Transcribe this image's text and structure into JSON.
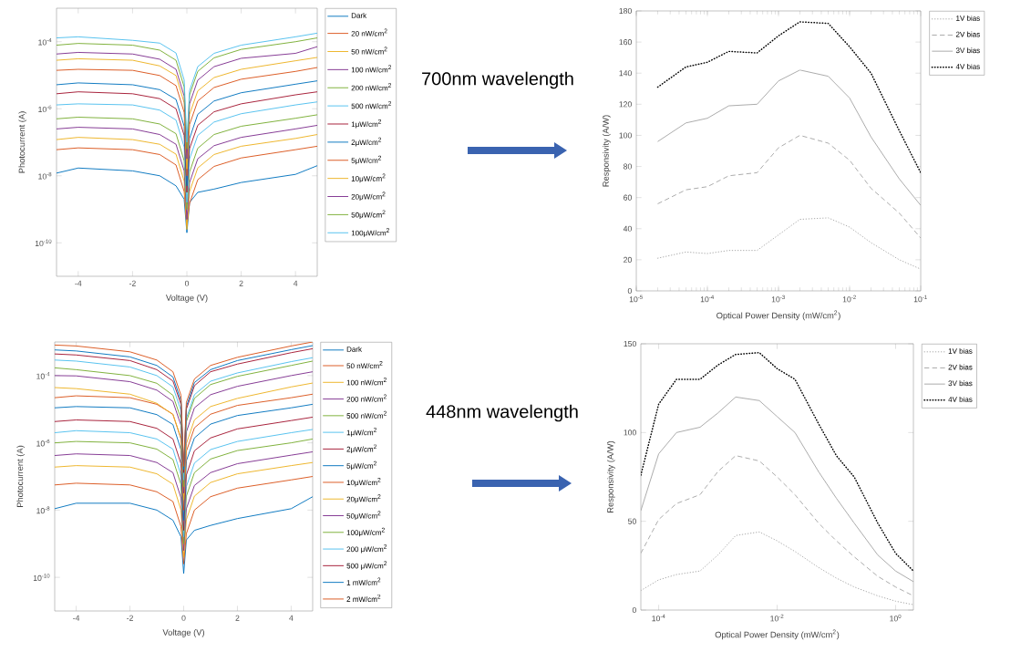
{
  "chart_data": [
    {
      "type": "line",
      "xlabel": "Voltage (V)",
      "ylabel": "Photocurrent (A)",
      "log": "y",
      "legend": "top right",
      "xlim": [
        -4.8,
        4.8
      ],
      "ylim": [
        1e-11,
        0.001
      ],
      "xticks": [
        -4,
        -2,
        0,
        2,
        4
      ],
      "yticks": [
        {
          "value": 1e-10,
          "label": "10$^{-10}$"
        },
        {
          "value": 1e-08,
          "label": "10$^{-8}$"
        },
        {
          "value": 1e-06,
          "label": "10$^{-6}$"
        },
        {
          "value": 0.0001,
          "label": "10$^{-4}$"
        }
      ],
      "x": [
        -4.8,
        -4,
        -2,
        -1,
        -0.4,
        -0.1,
        0,
        0.1,
        0.4,
        1,
        2,
        4,
        4.8
      ],
      "series": [
        {
          "name": "Dark",
          "color": "#0072bd",
          "values": [
            1.2e-08,
            1.7e-08,
            1.4e-08,
            1e-08,
            5e-09,
            2e-09,
            2e-10,
            1.6e-09,
            3.2e-09,
            4e-09,
            6.3e-09,
            1.1e-08,
            2e-08
          ]
        },
        {
          "name": "20 nW/cm$^{2}$",
          "color": "#d95319",
          "values": [
            6e-08,
            6.8e-08,
            6e-08,
            4.3e-08,
            2.1e-08,
            3.4e-09,
            3.2e-10,
            1.5e-09,
            7.6e-09,
            1.9e-08,
            3.4e-08,
            6e-08,
            7.6e-08
          ]
        },
        {
          "name": "50 nW/cm$^{2}$",
          "color": "#edb120",
          "values": [
            1.2e-07,
            1.4e-07,
            1.2e-07,
            8.7e-08,
            4.4e-08,
            6.9e-09,
            2.5e-10,
            3.4e-09,
            1.7e-08,
            4.3e-08,
            7.6e-08,
            1.3e-07,
            1.7e-07
          ]
        },
        {
          "name": "100 nW/cm$^{2}$",
          "color": "#7e2f8e",
          "values": [
            2.5e-07,
            2.8e-07,
            2.5e-07,
            1.7e-07,
            8.7e-08,
            1.4e-08,
            5e-10,
            6.3e-09,
            3.2e-08,
            7.9e-08,
            1.4e-07,
            2.5e-07,
            3.2e-07
          ]
        },
        {
          "name": "200 nW/cm$^{2}$",
          "color": "#77ac30",
          "values": [
            5e-07,
            5.6e-07,
            5e-07,
            3.5e-07,
            1.8e-07,
            2.8e-08,
            1e-09,
            1.3e-08,
            6.6e-08,
            1.7e-07,
            3e-07,
            5.2e-07,
            6.6e-07
          ]
        },
        {
          "name": "500 nW/cm$^{2}$",
          "color": "#4dbeee",
          "values": [
            1.3e-06,
            1.4e-06,
            1.3e-06,
            9.1e-07,
            4.6e-07,
            7.2e-08,
            1.6e-09,
            3.2e-08,
            1.6e-07,
            4e-07,
            7.1e-07,
            1.3e-06,
            1.6e-06
          ]
        },
        {
          "name": "1μW/cm$^{2}$",
          "color": "#a2142f",
          "values": [
            2.8e-06,
            3.2e-06,
            2.8e-06,
            2e-06,
            1e-06,
            1.6e-07,
            3.2e-09,
            6.5e-08,
            3.2e-07,
            8.1e-07,
            1.4e-06,
            2.6e-06,
            3.2e-06
          ]
        },
        {
          "name": "2μW/cm$^{2}$",
          "color": "#0072bd",
          "values": [
            5.2e-06,
            5.9e-06,
            5.2e-06,
            3.7e-06,
            1.9e-06,
            3e-07,
            5e-09,
            1.3e-07,
            6.8e-07,
            1.7e-06,
            3e-06,
            5.4e-06,
            6.8e-06
          ]
        },
        {
          "name": "5μW/cm$^{2}$",
          "color": "#d95319",
          "values": [
            1.4e-05,
            1.5e-05,
            1.4e-05,
            9.8e-06,
            4.9e-06,
            7.8e-07,
            1e-08,
            3.4e-07,
            1.7e-06,
            4.3e-06,
            7.6e-06,
            1.3e-05,
            1.7e-05
          ]
        },
        {
          "name": "10μW/cm$^{2}$",
          "color": "#edb120",
          "values": [
            2.8e-05,
            3.1e-05,
            2.8e-05,
            1.9e-05,
            9.8e-06,
            1.5e-06,
            1.6e-08,
            6.8e-07,
            3.4e-06,
            8.5e-06,
            1.5e-05,
            2.7e-05,
            3.4e-05
          ]
        },
        {
          "name": "20μW/cm$^{2}$",
          "color": "#7e2f8e",
          "values": [
            4.3e-05,
            4.8e-05,
            4.3e-05,
            3e-05,
            1.5e-05,
            2.4e-06,
            3.2e-08,
            1.4e-06,
            7.1e-06,
            1.8e-05,
            3.2e-05,
            4.5e-05,
            7.1e-05
          ]
        },
        {
          "name": "50μW/cm$^{2}$",
          "color": "#77ac30",
          "values": [
            7.9e-05,
            8.9e-05,
            7.9e-05,
            5.6e-05,
            2.8e-05,
            4.5e-06,
            6.3e-08,
            2.6e-06,
            1.3e-05,
            3.3e-05,
            5.9e-05,
            0.0001,
            0.00013
          ]
        },
        {
          "name": "100μW/cm$^{2}$",
          "color": "#4dbeee",
          "values": [
            0.00013,
            0.00014,
            0.00011,
            9.1e-05,
            4.6e-05,
            7.2e-06,
            1e-07,
            3.5e-06,
            1.8e-05,
            4.5e-05,
            7.9e-05,
            0.00014,
            0.00018
          ]
        }
      ]
    },
    {
      "type": "line",
      "xlabel": "Optical Power Density (mW/cm$^{2}$)",
      "ylabel": "Responsivity (A/W)",
      "log": "x",
      "legend": "top right",
      "annotations": [
        "700nm wavelength"
      ],
      "xlim": [
        1e-05,
        0.1
      ],
      "ylim": [
        0,
        180
      ],
      "xticks": [
        {
          "value": 1e-05,
          "label": "10$^{-5}$"
        },
        {
          "value": 0.0001,
          "label": "10$^{-4}$"
        },
        {
          "value": 0.001,
          "label": "10$^{-3}$"
        },
        {
          "value": 0.01,
          "label": "10$^{-2}$"
        },
        {
          "value": 0.1,
          "label": "10$^{-1}$"
        }
      ],
      "yticks": [
        0,
        20,
        40,
        60,
        80,
        100,
        120,
        140,
        160,
        180
      ],
      "x": [
        2e-05,
        5e-05,
        0.0001,
        0.0002,
        0.0005,
        0.001,
        0.002,
        0.005,
        0.01,
        0.02,
        0.05,
        0.1
      ],
      "series": [
        {
          "name": "1V bias",
          "color": "#a6a6a6",
          "line_style": "dotted",
          "values": [
            21,
            25,
            24,
            26,
            26,
            36,
            46,
            47,
            41,
            31,
            20,
            14
          ]
        },
        {
          "name": "2V bias",
          "color": "#a6a6a6",
          "line_style": "dashed",
          "values": [
            56,
            65,
            67,
            74,
            76,
            92,
            100,
            95,
            84,
            66,
            50,
            34
          ]
        },
        {
          "name": "3V bias",
          "color": "#a6a6a6",
          "line_style": "solid",
          "values": [
            96,
            108,
            111,
            119,
            120,
            135,
            142,
            138,
            124,
            99,
            72,
            55
          ]
        },
        {
          "name": "4V bias",
          "color": "#000000",
          "line_style": "dotted",
          "values": [
            131,
            144,
            147,
            154,
            153,
            164,
            173,
            172,
            157,
            140,
            103,
            76
          ]
        }
      ]
    },
    {
      "type": "line",
      "xlabel": "Voltage (V)",
      "ylabel": "Photocurrent (A)",
      "log": "y",
      "legend": "top right",
      "xlim": [
        -4.8,
        4.8
      ],
      "ylim": [
        1e-11,
        0.001
      ],
      "xticks": [
        -4,
        -2,
        0,
        2,
        4
      ],
      "yticks": [
        {
          "value": 1e-10,
          "label": "10$^{-10}$"
        },
        {
          "value": 1e-08,
          "label": "10$^{-8}$"
        },
        {
          "value": 1e-06,
          "label": "10$^{-6}$"
        },
        {
          "value": 0.0001,
          "label": "10$^{-4}$"
        }
      ],
      "x": [
        -4.8,
        -4,
        -2,
        -1,
        -0.4,
        -0.1,
        0,
        0.1,
        0.4,
        1,
        2,
        4,
        4.8
      ],
      "series": [
        {
          "name": "Dark",
          "color": "#0072bd",
          "values": [
            1.1e-08,
            1.6e-08,
            1.6e-08,
            1e-08,
            5e-09,
            1.6e-09,
            1.3e-10,
            1.3e-09,
            2.5e-09,
            3.5e-09,
            5.6e-09,
            1.1e-08,
            2.5e-08
          ]
        },
        {
          "name": "50 nW/cm$^{2}$",
          "color": "#d95319",
          "values": [
            5.6e-08,
            6.3e-08,
            5.6e-08,
            3.5e-08,
            1.8e-08,
            3.2e-09,
            2.5e-10,
            2e-09,
            1e-08,
            2.5e-08,
            4.5e-08,
            7.9e-08,
            1e-07
          ]
        },
        {
          "name": "100 nW/cm$^{2}$",
          "color": "#edb120",
          "values": [
            1.9e-07,
            2.1e-07,
            1.9e-07,
            1.2e-07,
            5.9e-08,
            1e-08,
            4e-10,
            5.2e-09,
            2.6e-08,
            6.6e-08,
            1.2e-07,
            2.1e-07,
            2.6e-07
          ]
        },
        {
          "name": "200 nW/cm$^{2}$",
          "color": "#7e2f8e",
          "values": [
            4.2e-07,
            4.7e-07,
            4.2e-07,
            2.6e-07,
            1.3e-07,
            2.3e-08,
            6.3e-10,
            1.1e-08,
            5.4e-08,
            1.3e-07,
            2.4e-07,
            4.3e-07,
            5.4e-07
          ]
        },
        {
          "name": "500 nW/cm$^{2}$",
          "color": "#77ac30",
          "values": [
            1e-06,
            1.1e-06,
            1e-06,
            6.5e-07,
            3.2e-07,
            5.8e-08,
            1e-09,
            2.6e-08,
            1.3e-07,
            3.3e-07,
            5.9e-07,
            1e-06,
            1.3e-06
          ]
        },
        {
          "name": "1μW/cm$^{2}$",
          "color": "#4dbeee",
          "values": [
            2e-06,
            2.3e-06,
            2e-06,
            1.3e-06,
            6.5e-07,
            1.1e-07,
            1.6e-09,
            5e-08,
            2.5e-07,
            6.3e-07,
            1.1e-06,
            2e-06,
            2.5e-06
          ]
        },
        {
          "name": "2μW/cm$^{2}$",
          "color": "#a2142f",
          "values": [
            4.3e-06,
            4.8e-06,
            4.3e-06,
            2.7e-06,
            1.3e-06,
            2.4e-07,
            2.5e-09,
            1.1e-07,
            5.8e-07,
            1.4e-06,
            2.6e-06,
            4.6e-06,
            5.8e-06
          ]
        },
        {
          "name": "5μW/cm$^{2}$",
          "color": "#0072bd",
          "values": [
            1.1e-05,
            1.2e-05,
            1.1e-05,
            6.9e-06,
            3.5e-06,
            6.2e-07,
            5e-09,
            2.9e-07,
            1.4e-06,
            3.6e-06,
            6.5e-06,
            1.1e-05,
            1.4e-05
          ]
        },
        {
          "name": "10μW/cm$^{2}$",
          "color": "#d95319",
          "values": [
            2.2e-05,
            2.5e-05,
            2.2e-05,
            1.4e-05,
            7.1e-06,
            1.3e-06,
            1e-08,
            5.6e-07,
            2.8e-06,
            7.1e-06,
            1.3e-05,
            2.2e-05,
            2.8e-05
          ]
        },
        {
          "name": "20μW/cm$^{2}$",
          "color": "#edb120",
          "values": [
            4.4e-05,
            4.1e-05,
            2.8e-05,
            1.5e-05,
            6.9e-06,
            1.4e-06,
            2e-08,
            9.5e-07,
            4.8e-06,
            1.2e-05,
            2.1e-05,
            4.6e-05,
            6e-05
          ]
        },
        {
          "name": "50μW/cm$^{2}$",
          "color": "#7e2f8e",
          "values": [
            0.0001,
            9.8e-05,
            6.6e-05,
            3.7e-05,
            1.7e-05,
            3.3e-06,
            3.2e-08,
            2.1e-06,
            1.1e-05,
            2.7e-05,
            4.8e-05,
            0.0001,
            0.00013
          ]
        },
        {
          "name": "100μW/cm$^{2}$",
          "color": "#77ac30",
          "values": [
            0.00017,
            0.00015,
            0.0001,
            5.9e-05,
            2.6e-05,
            5.2e-06,
            5e-08,
            4.3e-06,
            2.1e-05,
            5.4e-05,
            9.5e-05,
            0.0002,
            0.00027
          ]
        },
        {
          "name": "200 μW/cm$^{2}$",
          "color": "#4dbeee",
          "values": [
            0.00029,
            0.00027,
            0.00018,
            0.0001,
            4.6e-05,
            9.1e-06,
            7.9e-08,
            5.4e-06,
            2.7e-05,
            6.8e-05,
            0.00012,
            0.00026,
            0.00034
          ]
        },
        {
          "name": "500 μW/cm$^{2}$",
          "color": "#a2142f",
          "values": [
            0.00044,
            0.00041,
            0.00028,
            0.00015,
            6.9e-05,
            1.4e-05,
            1.3e-07,
            1e-05,
            5e-05,
            0.00013,
            0.00022,
            0.00048,
            0.00063
          ]
        },
        {
          "name": "1 mW/cm$^{2}$",
          "color": "#0072bd",
          "values": [
            0.00058,
            0.00054,
            0.00036,
            0.0002,
            9.1e-05,
            1.8e-05,
            1.6e-07,
            1.2e-05,
            6.2e-05,
            0.00015,
            0.00028,
            0.00059,
            0.00078
          ]
        },
        {
          "name": "2 mW/cm$^{2}$",
          "color": "#d95319",
          "values": [
            0.00081,
            0.00076,
            0.00051,
            0.00029,
            0.00013,
            2.6e-05,
            2e-07,
            1.6e-05,
            7.9e-05,
            0.0002,
            0.00035,
            0.00076,
            0.001
          ]
        }
      ]
    },
    {
      "type": "line",
      "xlabel": "Optical Power Density (mW/cm$^{2}$)",
      "ylabel": "Responsivity (A/W)",
      "log": "x",
      "legend": "top right",
      "annotations": [
        "448nm wavelength"
      ],
      "xlim": [
        5e-05,
        2
      ],
      "ylim": [
        0,
        150
      ],
      "xticks": [
        {
          "value": 0.0001,
          "label": "10$^{-4}$"
        },
        {
          "value": 0.01,
          "label": "10$^{-2}$"
        },
        {
          "value": 1,
          "label": "10$^{0}$"
        }
      ],
      "yticks": [
        0,
        50,
        100,
        150
      ],
      "x": [
        5e-05,
        0.0001,
        0.0002,
        0.0005,
        0.001,
        0.002,
        0.005,
        0.01,
        0.02,
        0.05,
        0.1,
        0.2,
        0.5,
        1,
        2
      ],
      "series": [
        {
          "name": "1V bias",
          "color": "#a6a6a6",
          "line_style": "dotted",
          "values": [
            11,
            17,
            20,
            22,
            31,
            42,
            44,
            39,
            33,
            24,
            18,
            13,
            8,
            5,
            3
          ]
        },
        {
          "name": "2V bias",
          "color": "#a6a6a6",
          "line_style": "dashed",
          "values": [
            32,
            51,
            60,
            65,
            78,
            87,
            84,
            75,
            65,
            49,
            39,
            30,
            19,
            13,
            8
          ]
        },
        {
          "name": "3V bias",
          "color": "#a6a6a6",
          "line_style": "solid",
          "values": [
            56,
            88,
            100,
            103,
            111,
            120,
            118,
            109,
            100,
            78,
            63,
            49,
            31,
            22,
            16
          ]
        },
        {
          "name": "4V bias",
          "color": "#000000",
          "line_style": "dotted",
          "values": [
            76,
            116,
            130,
            130,
            138,
            144,
            145,
            136,
            130,
            105,
            87,
            75,
            49,
            32,
            22
          ]
        }
      ]
    }
  ]
}
